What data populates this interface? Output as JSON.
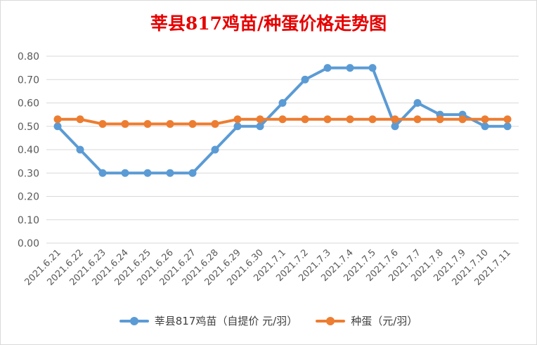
{
  "chart_data": {
    "type": "line",
    "title": "莘县817鸡苗/种蛋价格走势图",
    "xlabel": "",
    "ylabel": "",
    "ylim": [
      0,
      0.8
    ],
    "yticks": [
      "0.00",
      "0.10",
      "0.20",
      "0.30",
      "0.40",
      "0.50",
      "0.60",
      "0.70",
      "0.80"
    ],
    "grid": true,
    "legend_position": "bottom",
    "categories": [
      "2021.6.21",
      "2021.6.22",
      "2021.6.23",
      "2021.6.24",
      "2021.6.25",
      "2021.6.26",
      "2021.6.27",
      "2021.6.28",
      "2021.6.29",
      "2021.6.30",
      "2021.7.1",
      "2021.7.2",
      "2021.7.3",
      "2021.7.4",
      "2021.7.5",
      "2021.7.6",
      "2021.7.7",
      "2021.7.8",
      "2021.7.9",
      "2021.7.10",
      "2021.7.11"
    ],
    "series": [
      {
        "name": "莘县817鸡苗（自提价 元/羽）",
        "color": "#5b9bd5",
        "values": [
          0.5,
          0.4,
          0.3,
          0.3,
          0.3,
          0.3,
          0.3,
          0.4,
          0.5,
          0.5,
          0.6,
          0.7,
          0.75,
          0.75,
          0.75,
          0.5,
          0.6,
          0.55,
          0.55,
          0.5,
          0.5
        ]
      },
      {
        "name": "种蛋（元/羽）",
        "color": "#ed7d31",
        "values": [
          0.53,
          0.53,
          0.51,
          0.51,
          0.51,
          0.51,
          0.51,
          0.51,
          0.53,
          0.53,
          0.53,
          0.53,
          0.53,
          0.53,
          0.53,
          0.53,
          0.53,
          0.53,
          0.53,
          0.53,
          0.53
        ]
      }
    ]
  }
}
